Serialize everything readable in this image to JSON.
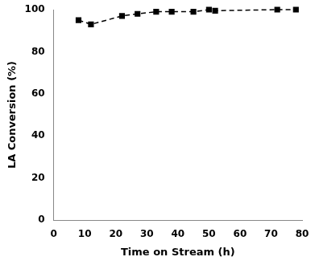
{
  "chart_data": {
    "type": "line",
    "xlabel": "Time on Stream (h)",
    "ylabel": "LA Conversion (%)",
    "x": [
      8,
      12,
      22,
      27,
      33,
      38,
      45,
      50,
      52,
      72,
      78
    ],
    "values": [
      95,
      93,
      97,
      98,
      99,
      99,
      99,
      100,
      99.5,
      100,
      100
    ],
    "color": "black",
    "marker": "square",
    "line_style": "dashed",
    "xlim": [
      0,
      80
    ],
    "ylim": [
      0,
      100
    ],
    "xticks": [
      0,
      10,
      20,
      30,
      40,
      50,
      60,
      70,
      80
    ],
    "yticks": [
      0,
      20,
      40,
      60,
      80,
      100
    ],
    "grid": false
  }
}
